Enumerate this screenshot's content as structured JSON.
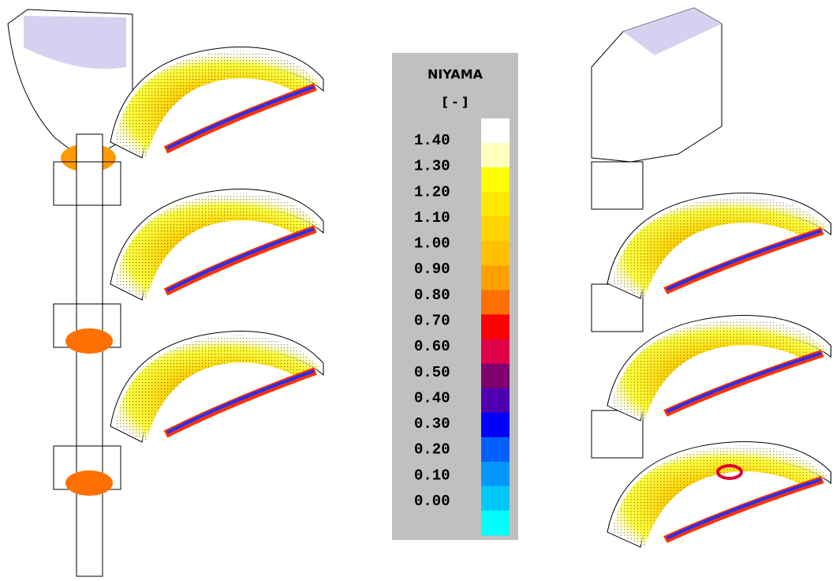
{
  "legend": {
    "title": "NIYAMA",
    "unit": "[ - ]",
    "labels": [
      "1.40",
      "1.30",
      "1.20",
      "1.10",
      "1.00",
      "0.90",
      "0.80",
      "0.70",
      "0.60",
      "0.50",
      "0.40",
      "0.30",
      "0.20",
      "0.10",
      "0.00"
    ],
    "colors": [
      "#ffffff",
      "#ffffc0",
      "#ffff00",
      "#ffe800",
      "#ffd400",
      "#ffc000",
      "#ffa000",
      "#ff7000",
      "#ff0000",
      "#e0004a",
      "#800070",
      "#5000b0",
      "#0000ff",
      "#0060ff",
      "#0098ff",
      "#00c8ff",
      "#00ffff"
    ]
  }
}
